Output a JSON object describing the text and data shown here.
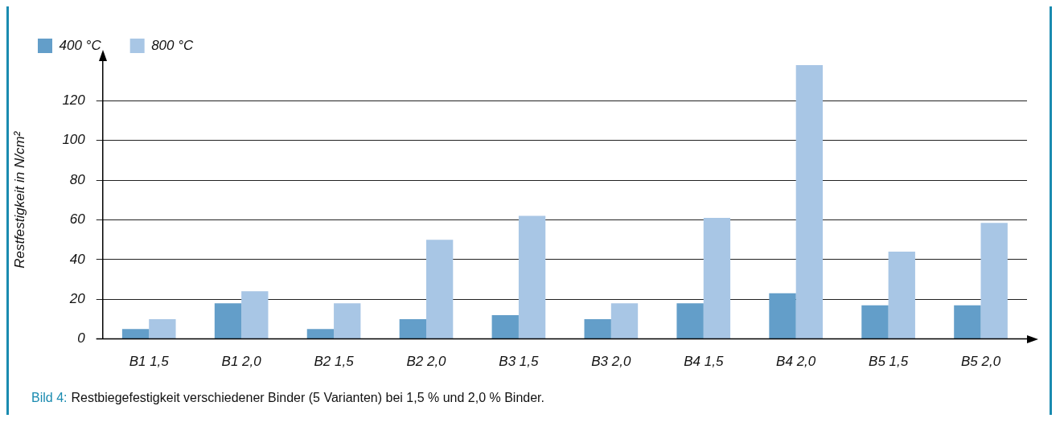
{
  "chart_data": {
    "type": "bar",
    "ylabel": "Restfestigkeit in N/cm²",
    "categories": [
      "B1 1,5",
      "B1 2,0",
      "B2 1,5",
      "B2 2,0",
      "B3 1,5",
      "B3 2,0",
      "B4 1,5",
      "B4 2,0",
      "B5 1,5",
      "B5 2,0"
    ],
    "series": [
      {
        "name": "400 °C",
        "color": "#639ec9",
        "values": [
          5,
          18,
          5,
          10,
          12,
          10,
          18,
          23,
          17,
          17
        ]
      },
      {
        "name": "800 °C",
        "color": "#a8c6e5",
        "values": [
          10,
          24,
          18,
          50,
          62,
          18,
          61,
          138,
          44,
          58.5
        ]
      }
    ],
    "ylim": [
      0,
      140
    ],
    "yticks": [
      0,
      20,
      40,
      60,
      80,
      100,
      120
    ],
    "grid": "y",
    "legend": "top left",
    "annotations": [
      "Bild 4:",
      "Restbiegefestigkeit verschiedener Binder (5 Varianten) bei 1,5 % und 2,0 % Binder."
    ]
  }
}
